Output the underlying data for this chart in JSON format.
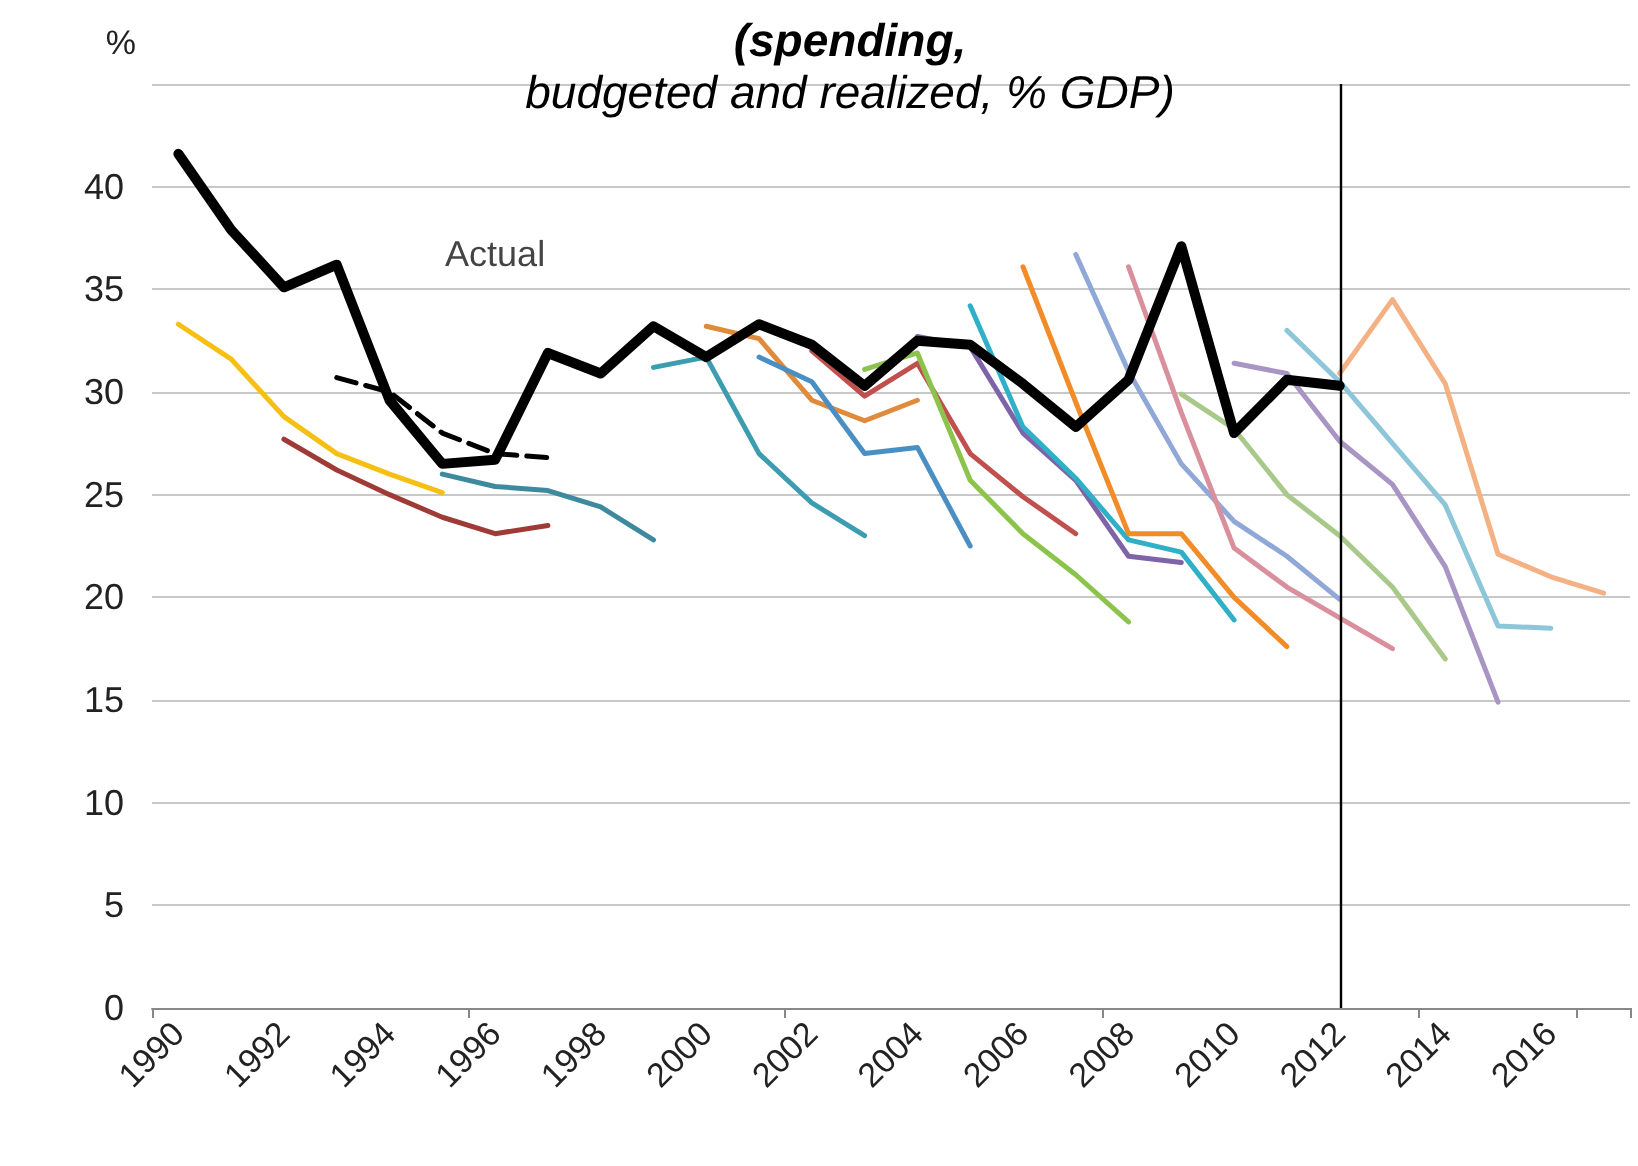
{
  "chart_data": {
    "type": "line",
    "title": "(spending,\nbudgeted and realized, % GDP)",
    "ylabel": "%",
    "categories": [
      "1990",
      null,
      "1992",
      null,
      "1994",
      null,
      "1996",
      null,
      "1998",
      null,
      "2000",
      null,
      "2002",
      null,
      "2004",
      null,
      "2006",
      null,
      "2008",
      null,
      "2010",
      null,
      "2012",
      null,
      "2014",
      null,
      "2016",
      null
    ],
    "series": [
      {
        "color": "#f5c013",
        "values": [
          33.3,
          31.6,
          28.8,
          27.0,
          26.0,
          25.1,
          null,
          null,
          null,
          null,
          null,
          null,
          null,
          null,
          null,
          null,
          null,
          null,
          null,
          null,
          null,
          null,
          null,
          null,
          null,
          null,
          null,
          null
        ]
      },
      {
        "color": "#9e3b36",
        "values": [
          null,
          null,
          27.7,
          26.2,
          25.0,
          23.9,
          23.1,
          23.5,
          null,
          null,
          null,
          null,
          null,
          null,
          null,
          null,
          null,
          null,
          null,
          null,
          null,
          null,
          null,
          null,
          null,
          null,
          null,
          null
        ]
      },
      {
        "color": "#3d8a9e",
        "values": [
          null,
          null,
          null,
          null,
          null,
          26.0,
          25.4,
          25.2,
          24.4,
          22.8,
          null,
          null,
          null,
          null,
          null,
          null,
          null,
          null,
          null,
          null,
          null,
          null,
          null,
          null,
          null,
          null,
          null,
          null
        ]
      },
      {
        "color": "#3e9cb0",
        "values": [
          null,
          null,
          null,
          null,
          null,
          null,
          null,
          null,
          null,
          31.2,
          31.7,
          27.0,
          24.6,
          23.0,
          null,
          null,
          null,
          null,
          null,
          null,
          null,
          null,
          null,
          null,
          null,
          null,
          null,
          null
        ]
      },
      {
        "color": "#e08a3c",
        "values": [
          null,
          null,
          null,
          null,
          null,
          null,
          null,
          null,
          null,
          null,
          33.2,
          32.6,
          29.6,
          28.6,
          29.6,
          null,
          null,
          null,
          null,
          null,
          null,
          null,
          null,
          null,
          null,
          null,
          null,
          null
        ]
      },
      {
        "color": "#4a8fc4",
        "values": [
          null,
          null,
          null,
          null,
          null,
          null,
          null,
          null,
          null,
          null,
          null,
          31.7,
          30.5,
          27.0,
          27.3,
          22.5,
          null,
          null,
          null,
          null,
          null,
          null,
          null,
          null,
          null,
          null,
          null,
          null
        ]
      },
      {
        "color": "#c0504d",
        "values": [
          null,
          null,
          null,
          null,
          null,
          null,
          null,
          null,
          null,
          null,
          null,
          null,
          32.0,
          29.8,
          31.4,
          27.0,
          24.9,
          23.1,
          null,
          null,
          null,
          null,
          null,
          null,
          null,
          null,
          null,
          null
        ]
      },
      {
        "color": "#8cc34c",
        "values": [
          null,
          null,
          null,
          null,
          null,
          null,
          null,
          null,
          null,
          null,
          null,
          null,
          null,
          31.1,
          31.9,
          25.7,
          23.1,
          21.1,
          18.8,
          null,
          null,
          null,
          null,
          null,
          null,
          null,
          null,
          null
        ]
      },
      {
        "color": "#7f63a8",
        "values": [
          null,
          null,
          null,
          null,
          null,
          null,
          null,
          null,
          null,
          null,
          null,
          null,
          null,
          null,
          32.7,
          32.2,
          28.0,
          25.7,
          22.0,
          21.7,
          null,
          null,
          null,
          null,
          null,
          null,
          null,
          null
        ]
      },
      {
        "color": "#2fb0c8",
        "values": [
          null,
          null,
          null,
          null,
          null,
          null,
          null,
          null,
          null,
          null,
          null,
          null,
          null,
          null,
          null,
          34.2,
          28.3,
          25.8,
          22.8,
          22.2,
          18.9,
          null,
          null,
          null,
          null,
          null,
          null,
          null
        ]
      },
      {
        "color": "#f28c28",
        "values": [
          null,
          null,
          null,
          null,
          null,
          null,
          null,
          null,
          null,
          null,
          null,
          null,
          null,
          null,
          null,
          null,
          36.1,
          29.5,
          23.1,
          23.1,
          20.0,
          17.6,
          null,
          null,
          null,
          null,
          null,
          null
        ]
      },
      {
        "color": "#8fa8d8",
        "values": [
          null,
          null,
          null,
          null,
          null,
          null,
          null,
          null,
          null,
          null,
          null,
          null,
          null,
          null,
          null,
          null,
          null,
          36.7,
          31.0,
          26.5,
          23.7,
          22.0,
          19.9,
          null,
          null,
          null,
          null,
          null
        ]
      },
      {
        "color": "#d9909c",
        "values": [
          null,
          null,
          null,
          null,
          null,
          null,
          null,
          null,
          null,
          null,
          null,
          null,
          null,
          null,
          null,
          null,
          null,
          null,
          36.1,
          29.0,
          22.4,
          20.5,
          19.0,
          17.5,
          null,
          null,
          null,
          null
        ]
      },
      {
        "color": "#a9c98a",
        "values": [
          null,
          null,
          null,
          null,
          null,
          null,
          null,
          null,
          null,
          null,
          null,
          null,
          null,
          null,
          null,
          null,
          null,
          null,
          null,
          29.9,
          28.2,
          25.0,
          23.0,
          20.5,
          17.0,
          null,
          null,
          null
        ]
      },
      {
        "color": "#a895c4",
        "values": [
          null,
          null,
          null,
          null,
          null,
          null,
          null,
          null,
          null,
          null,
          null,
          null,
          null,
          null,
          null,
          null,
          null,
          null,
          null,
          null,
          31.4,
          30.9,
          27.6,
          25.5,
          21.5,
          14.9,
          null,
          null
        ]
      },
      {
        "color": "#8cc6d8",
        "values": [
          null,
          null,
          null,
          null,
          null,
          null,
          null,
          null,
          null,
          null,
          null,
          null,
          null,
          null,
          null,
          null,
          null,
          null,
          null,
          null,
          null,
          33.0,
          30.5,
          27.5,
          24.5,
          18.6,
          18.5,
          null
        ]
      },
      {
        "color": "#f4b183",
        "values": [
          null,
          null,
          null,
          null,
          null,
          null,
          null,
          null,
          null,
          null,
          null,
          null,
          null,
          null,
          null,
          null,
          null,
          null,
          null,
          null,
          null,
          null,
          30.9,
          34.5,
          30.4,
          22.1,
          21.0,
          20.2
        ]
      },
      {
        "color": "#000000",
        "line_style": "dashed",
        "values": [
          null,
          null,
          null,
          30.7,
          30.0,
          28.0,
          27.0,
          26.8,
          null,
          null,
          null,
          null,
          null,
          null,
          null,
          null,
          null,
          null,
          null,
          null,
          null,
          null,
          null,
          null,
          null,
          null,
          null,
          null
        ]
      },
      {
        "name": "Actual",
        "color": "#000000",
        "values": [
          41.6,
          37.9,
          35.1,
          36.2,
          29.6,
          26.5,
          26.7,
          31.9,
          30.9,
          33.2,
          31.7,
          33.3,
          32.3,
          30.3,
          32.5,
          32.3,
          30.4,
          28.3,
          30.6,
          37.1,
          28.0,
          30.6,
          30.3,
          null,
          null,
          null,
          null,
          null
        ]
      }
    ],
    "ref_lines": [
      {
        "axis": "x",
        "value": "2012",
        "color": "#000000"
      }
    ],
    "ylim": [
      0,
      45
    ],
    "yticks": [
      0,
      5,
      10,
      15,
      20,
      25,
      30,
      35,
      40,
      {
        "value": 45,
        "label": null
      }
    ],
    "grid": "y",
    "marker": "none",
    "line_style": "solid"
  }
}
